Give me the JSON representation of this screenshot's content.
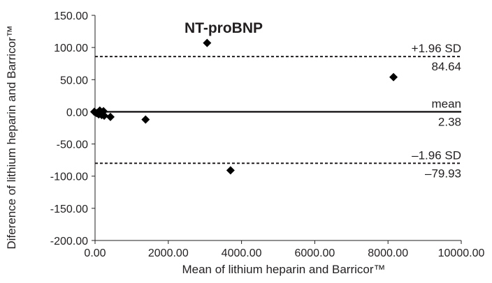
{
  "chart_data": {
    "type": "scatter",
    "title": "NT-proBNP",
    "xlabel": "Mean of lithium heparin and Barricor™",
    "ylabel": "Diference of lithium heparin and Barricor™",
    "xlim": [
      0,
      10000
    ],
    "ylim": [
      -200,
      150
    ],
    "x_ticks": [
      "0.00",
      "2000.00",
      "4000.00",
      "6000.00",
      "8000.00",
      "10000.00"
    ],
    "y_ticks": [
      "150.00",
      "100.00",
      "50.00",
      "0.00",
      "-50.00",
      "-100.00",
      "-150.00",
      "-200.00"
    ],
    "points": [
      {
        "x": -20,
        "y": 0
      },
      {
        "x": 40,
        "y": -2
      },
      {
        "x": 100,
        "y": -4
      },
      {
        "x": 130,
        "y": 2
      },
      {
        "x": 180,
        "y": -5
      },
      {
        "x": 230,
        "y": 1
      },
      {
        "x": 250,
        "y": -6
      },
      {
        "x": 420,
        "y": -8
      },
      {
        "x": 1380,
        "y": -12
      },
      {
        "x": 3060,
        "y": 107
      },
      {
        "x": 3700,
        "y": -91
      },
      {
        "x": 8150,
        "y": 54
      }
    ],
    "reference_lines": [
      {
        "name": "+1.96 SD",
        "value_label": "84.64",
        "y": 86,
        "style": "dashed"
      },
      {
        "name": "mean",
        "value_label": "2.38",
        "y": 0,
        "style": "solid"
      },
      {
        "name": "–1.96 SD",
        "value_label": "–79.93",
        "y": -80,
        "style": "dashed"
      }
    ],
    "grid": false,
    "marker": "diamond",
    "colors": {
      "ink": "#231f20",
      "marker": "#000000"
    }
  }
}
